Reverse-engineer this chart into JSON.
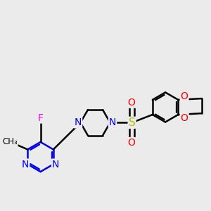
{
  "bg_color": "#ebebeb",
  "bond_color": "#000000",
  "bond_width": 1.8,
  "figsize": [
    3.0,
    3.0
  ],
  "dpi": 100,
  "atom_colors": {
    "N": "#0000ee",
    "F": "#ff00ff",
    "O": "#ff0000",
    "S": "#bbbb00",
    "C": "#000000"
  },
  "font_size_atom": 10,
  "font_size_sub": 7
}
